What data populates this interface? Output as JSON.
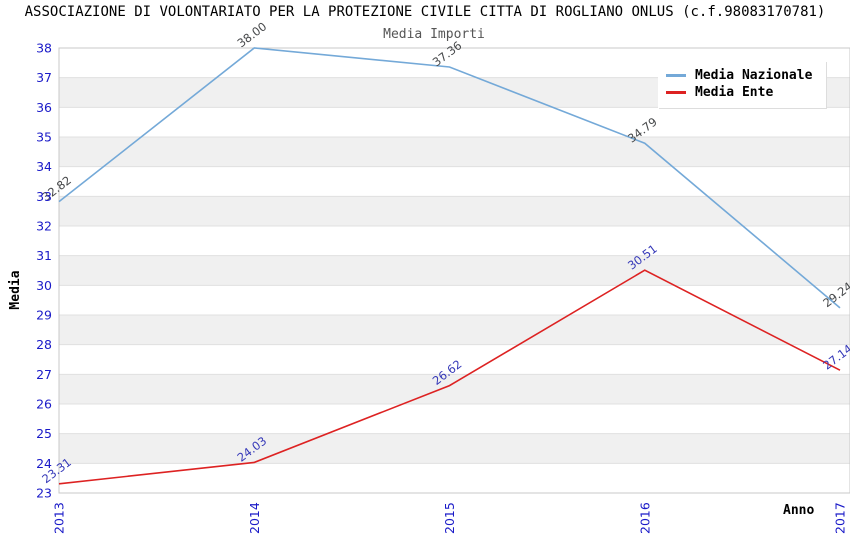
{
  "chart_data": {
    "type": "line",
    "title": "ASSOCIAZIONE DI VOLONTARIATO PER LA PROTEZIONE CIVILE CITTA DI ROGLIANO ONLUS (c.f.98083170781)",
    "subtitle": "Media Importi",
    "xlabel": "Anno",
    "ylabel": "Media",
    "x": [
      "2013",
      "2014",
      "2015",
      "2016",
      "2017"
    ],
    "series": [
      {
        "name": "Media Nazionale",
        "color": "#74a9d8",
        "label_color": "#47494b",
        "values": [
          32.82,
          38.0,
          37.36,
          34.79,
          29.24
        ]
      },
      {
        "name": "Media Ente",
        "color": "#dd2222",
        "label_color": "#3538b8",
        "values": [
          23.31,
          24.03,
          26.62,
          30.51,
          27.14
        ]
      }
    ],
    "ylim": [
      23,
      38
    ],
    "ytick_step": 1,
    "grid": "horizontal-bands",
    "legend_position": "top-right",
    "style": {
      "tick_color": "#1a1ac8",
      "band_color": "#f0f0f0",
      "gridline_color": "#e0e0e0",
      "border_color": "#c8c8c8",
      "subtitle_color": "#555555"
    }
  }
}
